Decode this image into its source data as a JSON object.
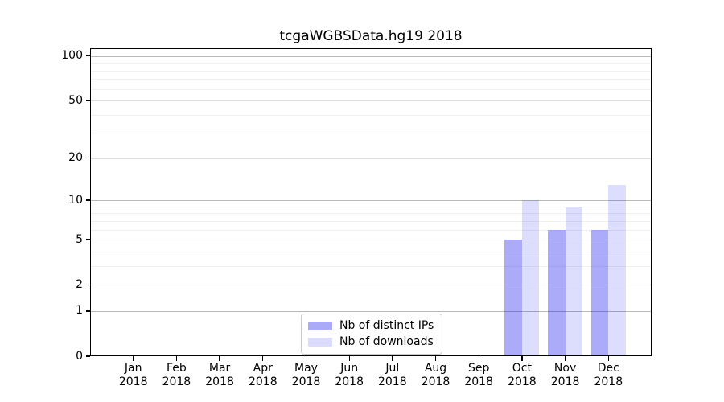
{
  "title": "tcgaWGBSData.hg19 2018",
  "chart_data": {
    "type": "bar",
    "title": "tcgaWGBSData.hg19 2018",
    "categories": [
      "Jan",
      "Feb",
      "Mar",
      "Apr",
      "May",
      "Jun",
      "Jul",
      "Aug",
      "Sep",
      "Oct",
      "Nov",
      "Dec"
    ],
    "year_label": "2018",
    "series": [
      {
        "name": "Nb of distinct IPs",
        "fill": "rgba(0,0,240,0.33)",
        "legend_color": "#aaaaf8",
        "values": [
          0,
          0,
          0,
          0,
          0,
          0,
          0,
          0,
          0,
          5,
          6,
          6
        ]
      },
      {
        "name": "Nb of downloads",
        "fill": "rgba(0,0,240,0.135)",
        "legend_color": "#dbdbfb",
        "values": [
          0,
          0,
          0,
          0,
          0,
          0,
          0,
          0,
          0,
          10,
          9,
          13
        ]
      }
    ],
    "yscale": "log1p",
    "ylim": [
      0,
      113
    ],
    "y_ticks": [
      0,
      1,
      2,
      5,
      10,
      20,
      50,
      100
    ],
    "y_minor_gridlines": [
      3,
      4,
      6,
      7,
      8,
      9,
      30,
      40,
      60,
      70,
      80,
      90
    ],
    "grid": true,
    "legend_position": "lower center",
    "bar_width_frac": 0.4
  },
  "colors": {
    "spine": "#000000",
    "grid_decade": "#b9b9b9",
    "grid_mid": "#dcdcdc",
    "grid_minor": "#f1f1f1",
    "background": "#ffffff"
  }
}
